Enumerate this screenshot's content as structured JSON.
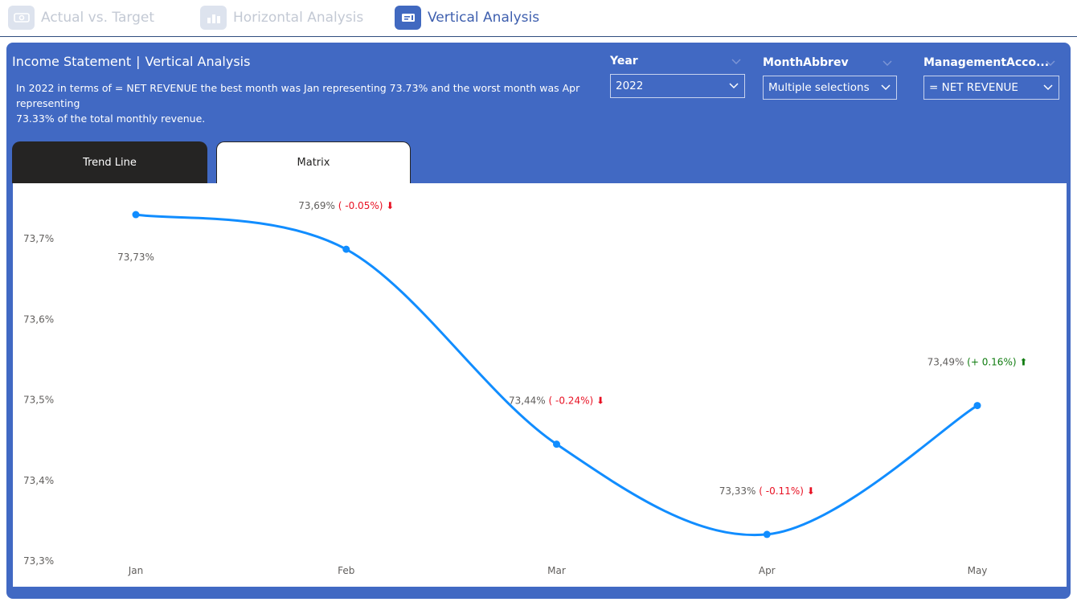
{
  "nav": {
    "tabs": [
      {
        "label": "Actual vs. Target",
        "icon": "money-icon",
        "active": false
      },
      {
        "label": "Horizontal Analysis",
        "icon": "bar-chart-icon",
        "active": false
      },
      {
        "label": "Vertical Analysis",
        "icon": "card-icon",
        "active": true
      }
    ]
  },
  "header": {
    "title_left": "Income Statement",
    "title_sep": "|",
    "title_right": "Vertical Analysis",
    "description_line1": "In 2022 in terms of = NET REVENUE the best month was Jan representing 73.73% and the worst month was Apr representing",
    "description_line2": "73.33% of the total monthly revenue."
  },
  "slicers": {
    "year": {
      "label": "Year",
      "value": "2022"
    },
    "month": {
      "label": "MonthAbbrev",
      "value": "Multiple selections"
    },
    "account": {
      "label": "ManagementAcco...",
      "value": "= NET REVENUE"
    }
  },
  "tabs": {
    "trend": "Trend Line",
    "matrix": "Matrix"
  },
  "colors": {
    "line": "#118dff",
    "negative": "#e81123",
    "positive": "#107c10",
    "panel": "#4169c3"
  },
  "chart_data": {
    "type": "line",
    "categories": [
      "Jan",
      "Feb",
      "Mar",
      "Apr",
      "May"
    ],
    "values": [
      73.73,
      73.687,
      73.445,
      73.333,
      73.493
    ],
    "ylim": [
      73.3,
      73.745
    ],
    "yticks": [
      73.3,
      73.4,
      73.5,
      73.6,
      73.7
    ],
    "ytick_labels": [
      "73,3%",
      "73,4%",
      "73,5%",
      "73,6%",
      "73,7%"
    ],
    "point_labels": [
      "73,73%",
      "73,69%",
      "73,44%",
      "73,33%",
      "73,49%"
    ],
    "change_labels": [
      "",
      "( -0.05%)",
      "( -0.24%)",
      "( -0.11%)",
      "(+ 0.16%)"
    ],
    "change_direction": [
      "none",
      "down",
      "down",
      "down",
      "up"
    ],
    "grid": false
  }
}
